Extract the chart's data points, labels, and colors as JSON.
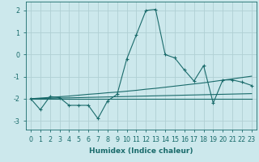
{
  "xlabel": "Humidex (Indice chaleur)",
  "bg_color": "#cce8ec",
  "grid_color": "#b0d0d4",
  "line_color": "#1a6b6b",
  "x_main": [
    0,
    1,
    2,
    3,
    4,
    5,
    6,
    7,
    8,
    9,
    10,
    11,
    12,
    13,
    14,
    15,
    16,
    17,
    18,
    19,
    20,
    21,
    22,
    23
  ],
  "y_main": [
    -2.0,
    -2.5,
    -1.9,
    -1.95,
    -2.3,
    -2.3,
    -2.3,
    -2.9,
    -2.1,
    -1.8,
    -0.2,
    0.9,
    2.0,
    2.05,
    0.0,
    -0.15,
    -0.7,
    -1.2,
    -0.5,
    -2.2,
    -1.15,
    -1.15,
    -1.25,
    -1.4
  ],
  "y_line1": [
    -2.0,
    -1.97,
    -1.94,
    -1.91,
    -1.88,
    -1.84,
    -1.8,
    -1.77,
    -1.73,
    -1.7,
    -1.66,
    -1.62,
    -1.57,
    -1.53,
    -1.48,
    -1.43,
    -1.38,
    -1.33,
    -1.28,
    -1.22,
    -1.16,
    -1.1,
    -1.04,
    -0.98
  ],
  "y_line2": [
    -2.0,
    -1.99,
    -1.98,
    -1.97,
    -1.96,
    -1.95,
    -1.94,
    -1.93,
    -1.92,
    -1.91,
    -1.9,
    -1.89,
    -1.88,
    -1.87,
    -1.86,
    -1.85,
    -1.84,
    -1.83,
    -1.82,
    -1.81,
    -1.8,
    -1.79,
    -1.78,
    -1.77
  ],
  "y_line3": [
    -2.0,
    -2.0,
    -2.0,
    -2.0,
    -2.0,
    -2.0,
    -2.0,
    -2.0,
    -2.0,
    -2.0,
    -2.0,
    -2.0,
    -2.0,
    -2.0,
    -2.0,
    -2.0,
    -2.0,
    -2.0,
    -2.0,
    -2.0,
    -2.0,
    -2.0,
    -2.0,
    -2.0
  ],
  "ylim": [
    -3.4,
    2.4
  ],
  "xlim": [
    -0.5,
    23.5
  ],
  "yticks": [
    -3,
    -2,
    -1,
    0,
    1,
    2
  ],
  "xticks": [
    0,
    1,
    2,
    3,
    4,
    5,
    6,
    7,
    8,
    9,
    10,
    11,
    12,
    13,
    14,
    15,
    16,
    17,
    18,
    19,
    20,
    21,
    22,
    23
  ],
  "xlabel_fontsize": 6.5,
  "tick_fontsize": 5.8
}
